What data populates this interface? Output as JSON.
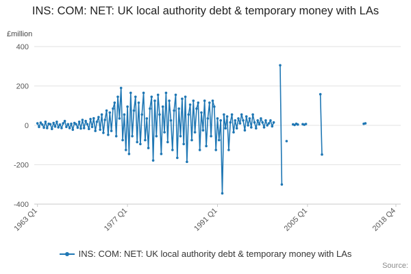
{
  "title": "INS: COM: NET: UK local authority debt & temporary money with LAs",
  "legend": {
    "label": "INS: COM: NET: UK local authority debt & temporary money with LAs"
  },
  "source_label": "Source:",
  "chart_data": {
    "type": "line",
    "title": "INS: COM: NET: UK local authority debt & temporary money with LAs",
    "xlabel": "",
    "ylabel": "£million",
    "ylim": [
      -400,
      400
    ],
    "xlim": [
      1962.5,
      2019.5
    ],
    "yticks": [
      400,
      200,
      0,
      -200,
      -400
    ],
    "xticks": [
      {
        "label": "1963 Q1",
        "x": 1963.0
      },
      {
        "label": "1977 Q1",
        "x": 1977.0
      },
      {
        "label": "1991 Q1",
        "x": 1991.0
      },
      {
        "label": "2005 Q1",
        "x": 2005.0
      },
      {
        "label": "2018 Q4",
        "x": 2018.75
      }
    ],
    "grid": true,
    "legend_position": "bottom",
    "line_color": "#1f77b4",
    "series": [
      {
        "name": "INS: COM: NET: UK local authority debt & temporary money with LAs",
        "segments": [
          {
            "start": 1963.0,
            "step": 0.25,
            "values": [
              10,
              -8,
              14,
              4,
              -12,
              18,
              -14,
              8,
              6,
              -18,
              12,
              -6,
              18,
              -10,
              4,
              -14,
              10,
              22,
              -8,
              6,
              -14,
              8,
              -22,
              12,
              6,
              -12,
              18,
              -16,
              28,
              -14,
              22,
              6,
              -18,
              32,
              -8,
              36,
              -28,
              18,
              42,
              -22,
              55,
              -38,
              28,
              75,
              -48,
              65,
              -28,
              85,
              115,
              -55,
              145,
              35,
              190,
              -75,
              55,
              -125,
              95,
              -145,
              165,
              -55,
              75,
              145,
              -85,
              115,
              -95,
              55,
              165,
              -75,
              35,
              -115,
              85,
              145,
              -178,
              125,
              -55,
              155,
              55,
              -145,
              95,
              -35,
              165,
              -85,
              125,
              25,
              -125,
              75,
              155,
              -165,
              85,
              -55,
              135,
              -95,
              145,
              -185,
              55,
              105,
              -75,
              125,
              -35,
              85,
              115,
              -125,
              65,
              -25,
              125,
              -105,
              35,
              115,
              -55,
              125,
              95,
              -125,
              35,
              -75,
              25,
              -345,
              55,
              -15,
              45,
              -125,
              15,
              55,
              -35,
              25,
              -15,
              35,
              10,
              55,
              25,
              -25,
              45,
              0,
              35,
              -10,
              55,
              15,
              -15,
              25,
              5,
              35,
              15,
              -10,
              25,
              0,
              10,
              25,
              -5,
              15
            ]
          },
          {
            "start": 2000.75,
            "step": 0.25,
            "values": [
              305,
              -300
            ]
          },
          {
            "start": 2001.75,
            "step": 0.25,
            "values": [
              -80
            ]
          },
          {
            "start": 2002.75,
            "step": 0.25,
            "values": [
              5,
              2,
              8,
              4
            ]
          },
          {
            "start": 2004.25,
            "step": 0.25,
            "values": [
              6,
              3,
              7
            ]
          },
          {
            "start": 2007.0,
            "step": 0.25,
            "values": [
              158,
              -148
            ]
          },
          {
            "start": 2013.75,
            "step": 0.25,
            "values": [
              8,
              10
            ]
          }
        ]
      }
    ]
  }
}
